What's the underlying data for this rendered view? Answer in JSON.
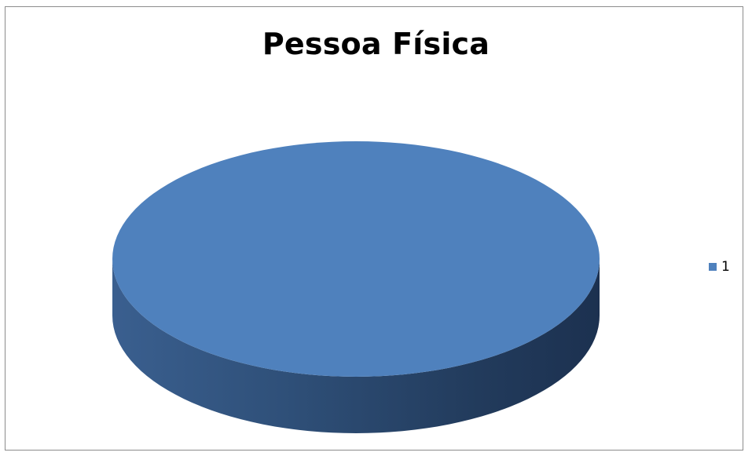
{
  "chart_data": {
    "type": "pie",
    "title": "Pessoa Física",
    "categories": [
      "1"
    ],
    "values": [
      100
    ],
    "legend": "right",
    "colors": [
      "#4f81bd"
    ],
    "three_d": true
  },
  "legend": {
    "items": [
      {
        "label": "1",
        "color": "#4f81bd"
      }
    ]
  }
}
